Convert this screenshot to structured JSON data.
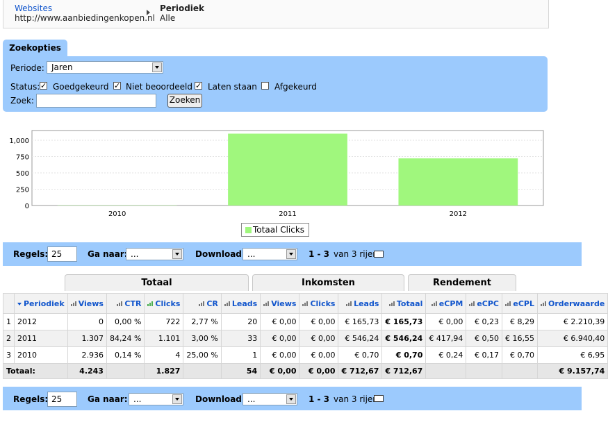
{
  "breadcrumb": {
    "websites_label": "Websites",
    "websites_value": "http://www.aanbiedingenkopen.nl",
    "period_label": "Periodiek",
    "period_value": "Alle"
  },
  "search": {
    "tab_label": "Zoekopties",
    "period_label": "Periode:",
    "period_value": "Jaren",
    "status_label": "Status:",
    "statuses": [
      {
        "label": "Goedgekeurd",
        "checked": true
      },
      {
        "label": "Niet beoordeeld",
        "checked": true
      },
      {
        "label": "Laten staan",
        "checked": true
      },
      {
        "label": "Afgekeurd",
        "checked": false
      }
    ],
    "query_label": "Zoek:",
    "query_value": "",
    "submit_label": "Zoeken"
  },
  "chart_data": {
    "type": "bar",
    "categories": [
      "2010",
      "2011",
      "2012"
    ],
    "series": [
      {
        "name": "Totaal Clicks",
        "values": [
          4,
          1101,
          722
        ],
        "color": "#a0f77d"
      }
    ],
    "yticks": [
      "0",
      "250",
      "500",
      "750",
      "1,000"
    ],
    "ylim": [
      0,
      1150
    ],
    "grid": true,
    "legend": "bottom-center"
  },
  "pager": {
    "rows_label": "Regels:",
    "rows_value": "25",
    "goto_label": "Ga naar:",
    "goto_value": "...",
    "download_label": "Download:",
    "download_value": "...",
    "range_bold": "1 - 3",
    "range_rest": "van 3 rijen"
  },
  "table": {
    "groups": [
      "Totaal",
      "Inkomsten",
      "Rendement"
    ],
    "headers": [
      "Periodiek",
      "Views",
      "CTR",
      "Clicks",
      "CR",
      "Leads",
      "Views",
      "Clicks",
      "Leads",
      "Totaal",
      "eCPM",
      "eCPC",
      "eCPL",
      "Orderwaarde"
    ],
    "rows": [
      [
        "1",
        "2012",
        "0",
        "0,00 %",
        "722",
        "2,77 %",
        "20",
        "€ 0,00",
        "€ 0,00",
        "€ 165,73",
        "€ 165,73",
        "€ 0,00",
        "€ 0,23",
        "€ 8,29",
        "€ 2.210,39"
      ],
      [
        "2",
        "2011",
        "1.307",
        "84,24 %",
        "1.101",
        "3,00 %",
        "33",
        "€ 0,00",
        "€ 0,00",
        "€ 546,24",
        "€ 546,24",
        "€ 417,94",
        "€ 0,50",
        "€ 16,55",
        "€ 6.940,40"
      ],
      [
        "3",
        "2010",
        "2.936",
        "0,14 %",
        "4",
        "25,00 %",
        "1",
        "€ 0,00",
        "€ 0,00",
        "€ 0,70",
        "€ 0,70",
        "€ 0,24",
        "€ 0,17",
        "€ 0,70",
        "€ 6,95"
      ]
    ],
    "total": [
      "Totaal:",
      "4.243",
      "",
      "1.827",
      "",
      "54",
      "€ 0,00",
      "€ 0,00",
      "€ 712,67",
      "€ 712,67",
      "",
      "",
      "",
      "€ 9.157,74"
    ]
  }
}
